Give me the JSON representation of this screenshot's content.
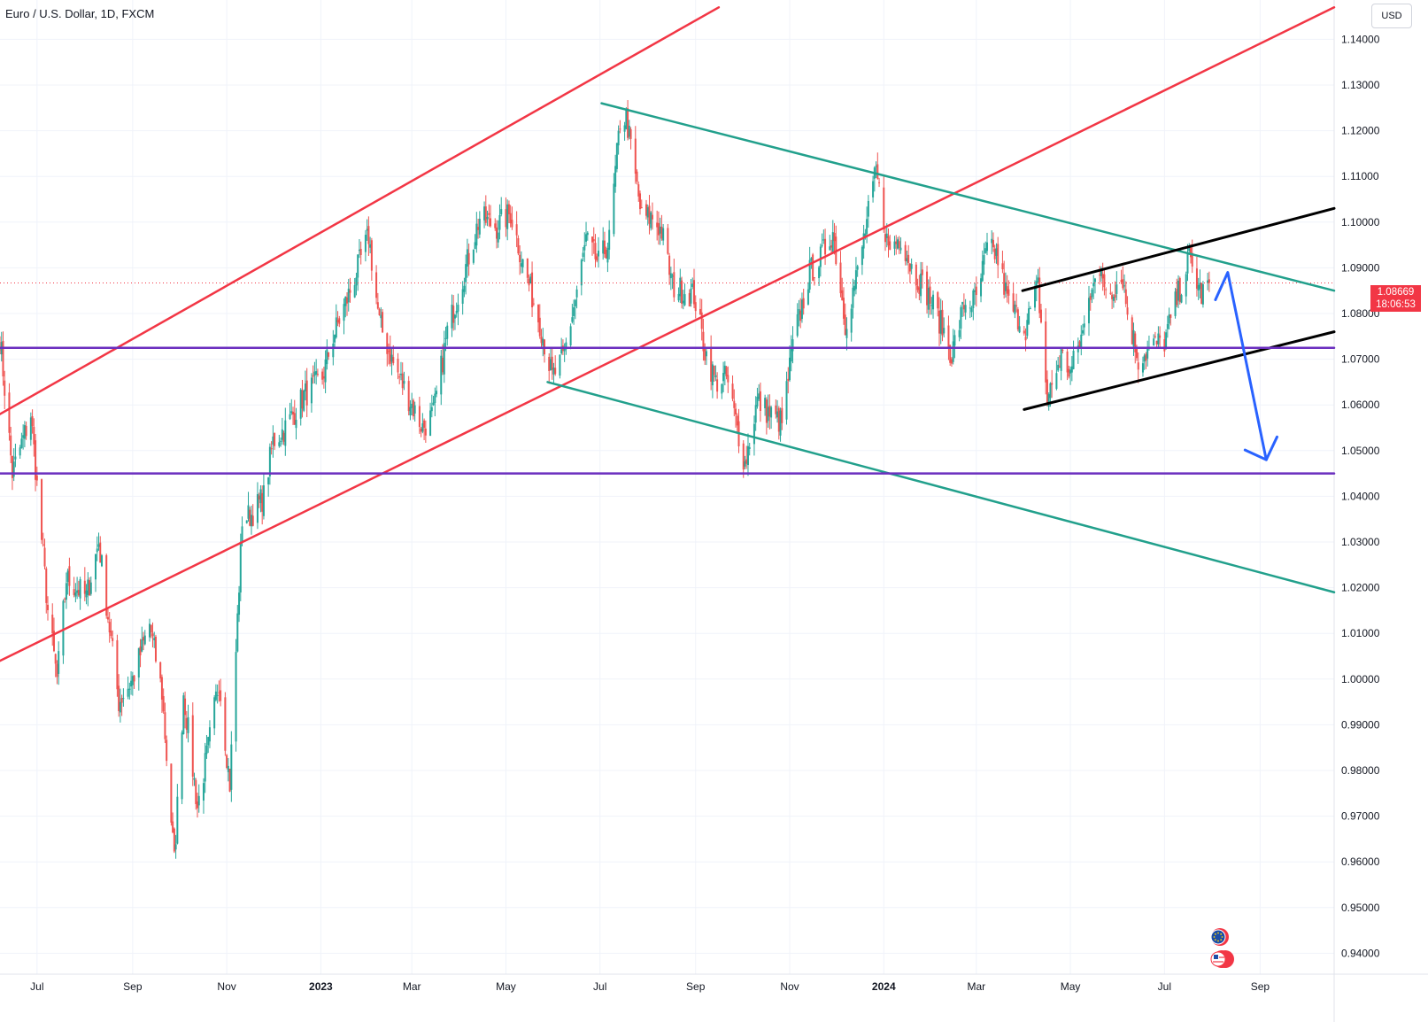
{
  "header": {
    "title": "Euro / U.S. Dollar, 1D, FXCM",
    "currency": "USD"
  },
  "price_badge": {
    "price": "1.08669",
    "countdown": "18:06:53"
  },
  "colors": {
    "up": "#26a69a",
    "down": "#ef5350",
    "channel_red": "#f23645",
    "channel_green": "#22a08c",
    "horizontal_purple": "#6b2fbf",
    "wedge_black": "#000000",
    "projection_blue": "#2962ff",
    "last_price_line": "#f23645"
  },
  "icons": [
    "eu-flag-icon",
    "us-flag-icon"
  ],
  "chart_data": {
    "type": "line",
    "title": "Euro / U.S. Dollar, 1D, FXCM",
    "ylabel": "USD",
    "ylim": [
      0.935,
      1.1475
    ],
    "y_ticks": [
      "1.14000",
      "1.13000",
      "1.12000",
      "1.11000",
      "1.10000",
      "1.09000",
      "1.08000",
      "1.07000",
      "1.06000",
      "1.05000",
      "1.04000",
      "1.03000",
      "1.02000",
      "1.01000",
      "1.00000",
      "0.99000",
      "0.98000",
      "0.97000",
      "0.96000",
      "0.95000",
      "0.94000"
    ],
    "x_ticks": [
      {
        "label": "Jul",
        "date": "2022-07-01",
        "bold": false
      },
      {
        "label": "Sep",
        "date": "2022-09-01",
        "bold": false
      },
      {
        "label": "Nov",
        "date": "2022-11-01",
        "bold": false
      },
      {
        "label": "2023",
        "date": "2023-01-01",
        "bold": true
      },
      {
        "label": "Mar",
        "date": "2023-03-01",
        "bold": false
      },
      {
        "label": "May",
        "date": "2023-05-01",
        "bold": false
      },
      {
        "label": "Jul",
        "date": "2023-07-01",
        "bold": false
      },
      {
        "label": "Sep",
        "date": "2023-09-01",
        "bold": false
      },
      {
        "label": "Nov",
        "date": "2023-11-01",
        "bold": false
      },
      {
        "label": "2024",
        "date": "2024-01-01",
        "bold": true
      },
      {
        "label": "Mar",
        "date": "2024-03-01",
        "bold": false
      },
      {
        "label": "May",
        "date": "2024-05-01",
        "bold": false
      },
      {
        "label": "Jul",
        "date": "2024-07-01",
        "bold": false
      },
      {
        "label": "Sep",
        "date": "2024-09-01",
        "bold": false
      }
    ],
    "last_price": 1.08669,
    "series": [
      {
        "name": "EURUSD",
        "points": [
          [
            "2022-06-07",
            1.075
          ],
          [
            "2022-06-15",
            1.045
          ],
          [
            "2022-06-27",
            1.058
          ],
          [
            "2022-07-08",
            1.015
          ],
          [
            "2022-07-14",
            1.0
          ],
          [
            "2022-07-20",
            1.022
          ],
          [
            "2022-08-02",
            1.018
          ],
          [
            "2022-08-10",
            1.03
          ],
          [
            "2022-08-23",
            0.995
          ],
          [
            "2022-09-01",
            1.0
          ],
          [
            "2022-09-12",
            1.012
          ],
          [
            "2022-09-20",
            0.997
          ],
          [
            "2022-09-28",
            0.96
          ],
          [
            "2022-10-04",
            0.997
          ],
          [
            "2022-10-13",
            0.972
          ],
          [
            "2022-10-20",
            0.985
          ],
          [
            "2022-10-27",
            1.0
          ],
          [
            "2022-11-03",
            0.977
          ],
          [
            "2022-11-11",
            1.035
          ],
          [
            "2022-11-17",
            1.036
          ],
          [
            "2022-11-25",
            1.04
          ],
          [
            "2022-12-01",
            1.052
          ],
          [
            "2022-12-09",
            1.055
          ],
          [
            "2022-12-21",
            1.062
          ],
          [
            "2023-01-02",
            1.066
          ],
          [
            "2023-01-09",
            1.075
          ],
          [
            "2023-01-20",
            1.085
          ],
          [
            "2023-02-01",
            1.097
          ],
          [
            "2023-02-08",
            1.078
          ],
          [
            "2023-02-17",
            1.069
          ],
          [
            "2023-03-01",
            1.06
          ],
          [
            "2023-03-08",
            1.055
          ],
          [
            "2023-03-15",
            1.058
          ],
          [
            "2023-03-24",
            1.076
          ],
          [
            "2023-04-04",
            1.089
          ],
          [
            "2023-04-14",
            1.101
          ],
          [
            "2023-04-25",
            1.099
          ],
          [
            "2023-05-04",
            1.102
          ],
          [
            "2023-05-12",
            1.091
          ],
          [
            "2023-05-23",
            1.078
          ],
          [
            "2023-05-31",
            1.066
          ],
          [
            "2023-06-07",
            1.07
          ],
          [
            "2023-06-15",
            1.083
          ],
          [
            "2023-06-22",
            1.096
          ],
          [
            "2023-06-30",
            1.091
          ],
          [
            "2023-07-07",
            1.096
          ],
          [
            "2023-07-14",
            1.122
          ],
          [
            "2023-07-18",
            1.123
          ],
          [
            "2023-07-28",
            1.101
          ],
          [
            "2023-08-04",
            1.101
          ],
          [
            "2023-08-10",
            1.098
          ],
          [
            "2023-08-17",
            1.086
          ],
          [
            "2023-08-24",
            1.085
          ],
          [
            "2023-08-31",
            1.084
          ],
          [
            "2023-09-07",
            1.072
          ],
          [
            "2023-09-14",
            1.065
          ],
          [
            "2023-09-21",
            1.066
          ],
          [
            "2023-10-03",
            1.047
          ],
          [
            "2023-10-11",
            1.061
          ],
          [
            "2023-10-19",
            1.058
          ],
          [
            "2023-10-27",
            1.056
          ],
          [
            "2023-11-03",
            1.073
          ],
          [
            "2023-11-14",
            1.089
          ],
          [
            "2023-11-21",
            1.092
          ],
          [
            "2023-11-29",
            1.098
          ],
          [
            "2023-12-07",
            1.078
          ],
          [
            "2023-12-15",
            1.089
          ],
          [
            "2023-12-27",
            1.111
          ],
          [
            "2024-01-04",
            1.094
          ],
          [
            "2024-01-12",
            1.097
          ],
          [
            "2024-01-19",
            1.09
          ],
          [
            "2024-01-30",
            1.084
          ],
          [
            "2024-02-08",
            1.077
          ],
          [
            "2024-02-14",
            1.071
          ],
          [
            "2024-02-22",
            1.082
          ],
          [
            "2024-03-01",
            1.083
          ],
          [
            "2024-03-08",
            1.094
          ],
          [
            "2024-03-14",
            1.093
          ],
          [
            "2024-03-22",
            1.082
          ],
          [
            "2024-04-02",
            1.077
          ],
          [
            "2024-04-10",
            1.086
          ],
          [
            "2024-04-16",
            1.061
          ],
          [
            "2024-04-25",
            1.071
          ],
          [
            "2024-05-01",
            1.067
          ],
          [
            "2024-05-10",
            1.077
          ],
          [
            "2024-05-16",
            1.089
          ],
          [
            "2024-05-27",
            1.085
          ],
          [
            "2024-06-04",
            1.088
          ],
          [
            "2024-06-07",
            1.08
          ],
          [
            "2024-06-14",
            1.07
          ],
          [
            "2024-06-24",
            1.073
          ],
          [
            "2024-07-01",
            1.074
          ],
          [
            "2024-07-08",
            1.082
          ],
          [
            "2024-07-17",
            1.092
          ],
          [
            "2024-07-25",
            1.084
          ],
          [
            "2024-07-30",
            1.08669
          ]
        ]
      }
    ],
    "trendlines": [
      {
        "name": "ascending-channel-upper",
        "color": "red",
        "from": [
          "2022-06-07",
          1.058
        ],
        "to": [
          "2023-09-16",
          1.147
        ]
      },
      {
        "name": "ascending-channel-lower",
        "color": "red",
        "from": [
          "2022-06-07",
          1.004
        ],
        "to": [
          "2024-10-19",
          1.147
        ]
      },
      {
        "name": "descending-channel-upper",
        "color": "green",
        "from": [
          "2023-07-02",
          1.126
        ],
        "to": [
          "2024-10-19",
          1.085
        ]
      },
      {
        "name": "descending-channel-lower",
        "color": "green",
        "from": [
          "2023-05-28",
          1.065
        ],
        "to": [
          "2024-10-19",
          1.019
        ]
      },
      {
        "name": "wedge-upper",
        "color": "black",
        "from": [
          "2024-03-31",
          1.085
        ],
        "to": [
          "2024-10-19",
          1.103
        ]
      },
      {
        "name": "wedge-lower",
        "color": "black",
        "from": [
          "2024-04-01",
          1.059
        ],
        "to": [
          "2024-10-19",
          1.076
        ]
      },
      {
        "name": "support-1.0725",
        "color": "purple",
        "from": [
          "2022-06-07",
          1.0725
        ],
        "to": [
          "2024-10-19",
          1.0725
        ]
      },
      {
        "name": "support-1.045",
        "color": "purple",
        "from": [
          "2022-06-07",
          1.045
        ],
        "to": [
          "2024-10-19",
          1.045
        ]
      }
    ],
    "projection": [
      [
        "2024-08-03",
        1.083
      ],
      [
        "2024-08-11",
        1.089
      ],
      [
        "2024-09-05",
        1.048
      ],
      [
        "2024-09-12",
        1.053
      ]
    ],
    "grid": true,
    "legend": "none"
  }
}
